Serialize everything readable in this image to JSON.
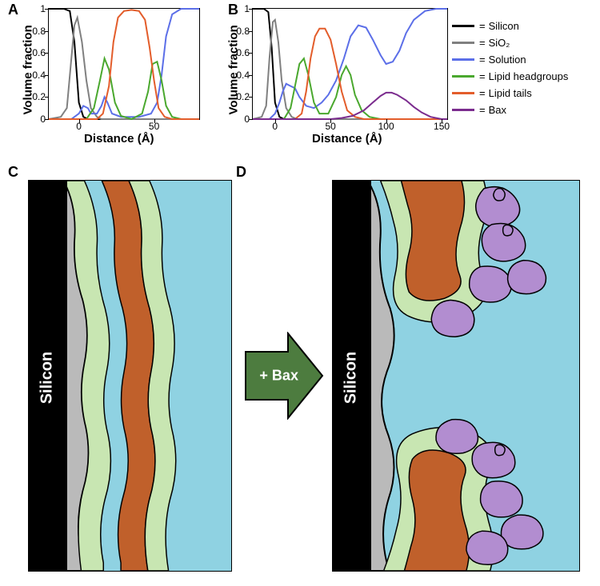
{
  "chartA": {
    "letter": "A",
    "xlim": [
      -20,
      80
    ],
    "ylim": [
      0,
      1
    ],
    "yticks": [
      0,
      0.2,
      0.4,
      0.6,
      0.8,
      1
    ],
    "xticks": [
      0,
      50
    ],
    "ylabel": "Volume fraction",
    "xlabel": "Distance (Å)",
    "series": [
      {
        "name": "silicon",
        "color": "#000000",
        "points": [
          [
            -20,
            1
          ],
          [
            -10,
            1
          ],
          [
            -6,
            0.98
          ],
          [
            -3,
            0.7
          ],
          [
            0,
            0.15
          ],
          [
            3,
            0.02
          ],
          [
            6,
            0
          ],
          [
            80,
            0
          ]
        ]
      },
      {
        "name": "sio2",
        "color": "#808080",
        "points": [
          [
            -20,
            0
          ],
          [
            -12,
            0.02
          ],
          [
            -8,
            0.1
          ],
          [
            -5,
            0.55
          ],
          [
            -3,
            0.85
          ],
          [
            -1,
            0.92
          ],
          [
            2,
            0.7
          ],
          [
            5,
            0.35
          ],
          [
            8,
            0.1
          ],
          [
            12,
            0.02
          ],
          [
            15,
            0
          ],
          [
            80,
            0
          ]
        ]
      },
      {
        "name": "solution",
        "color": "#5c6fe8",
        "points": [
          [
            -20,
            0
          ],
          [
            -5,
            0
          ],
          [
            0,
            0.05
          ],
          [
            3,
            0.12
          ],
          [
            6,
            0.1
          ],
          [
            8,
            0.05
          ],
          [
            12,
            0.05
          ],
          [
            15,
            0.12
          ],
          [
            17,
            0.2
          ],
          [
            19,
            0.15
          ],
          [
            22,
            0.05
          ],
          [
            28,
            0.02
          ],
          [
            40,
            0.02
          ],
          [
            48,
            0.05
          ],
          [
            52,
            0.15
          ],
          [
            55,
            0.4
          ],
          [
            58,
            0.75
          ],
          [
            62,
            0.95
          ],
          [
            68,
            1
          ],
          [
            80,
            1
          ]
        ]
      },
      {
        "name": "headgroups",
        "color": "#4aa82e",
        "points": [
          [
            -20,
            0
          ],
          [
            5,
            0
          ],
          [
            10,
            0.1
          ],
          [
            14,
            0.35
          ],
          [
            17,
            0.55
          ],
          [
            20,
            0.45
          ],
          [
            24,
            0.15
          ],
          [
            28,
            0.03
          ],
          [
            35,
            0
          ],
          [
            42,
            0.05
          ],
          [
            46,
            0.25
          ],
          [
            49,
            0.5
          ],
          [
            52,
            0.52
          ],
          [
            55,
            0.35
          ],
          [
            58,
            0.12
          ],
          [
            62,
            0.02
          ],
          [
            68,
            0
          ],
          [
            80,
            0
          ]
        ]
      },
      {
        "name": "tails",
        "color": "#e35d2b",
        "points": [
          [
            -20,
            0
          ],
          [
            12,
            0
          ],
          [
            16,
            0.05
          ],
          [
            20,
            0.3
          ],
          [
            23,
            0.7
          ],
          [
            26,
            0.92
          ],
          [
            30,
            0.98
          ],
          [
            35,
            0.99
          ],
          [
            40,
            0.98
          ],
          [
            44,
            0.9
          ],
          [
            47,
            0.65
          ],
          [
            50,
            0.35
          ],
          [
            53,
            0.1
          ],
          [
            57,
            0.02
          ],
          [
            62,
            0
          ],
          [
            80,
            0
          ]
        ]
      }
    ]
  },
  "chartB": {
    "letter": "B",
    "xlim": [
      -20,
      155
    ],
    "ylim": [
      0,
      1
    ],
    "yticks": [
      0,
      0.2,
      0.4,
      0.6,
      0.8,
      1
    ],
    "xticks": [
      0,
      50,
      100,
      150
    ],
    "ylabel": "Volume fraction",
    "xlabel": "Distance (Å)",
    "series": [
      {
        "name": "silicon",
        "color": "#000000",
        "points": [
          [
            -20,
            1
          ],
          [
            -10,
            1
          ],
          [
            -6,
            0.97
          ],
          [
            -3,
            0.65
          ],
          [
            0,
            0.15
          ],
          [
            4,
            0.02
          ],
          [
            8,
            0
          ],
          [
            155,
            0
          ]
        ]
      },
      {
        "name": "sio2",
        "color": "#808080",
        "points": [
          [
            -20,
            0
          ],
          [
            -12,
            0.02
          ],
          [
            -8,
            0.12
          ],
          [
            -5,
            0.55
          ],
          [
            -2,
            0.88
          ],
          [
            0,
            0.9
          ],
          [
            3,
            0.7
          ],
          [
            6,
            0.35
          ],
          [
            10,
            0.1
          ],
          [
            15,
            0.02
          ],
          [
            20,
            0
          ],
          [
            155,
            0
          ]
        ]
      },
      {
        "name": "solution",
        "color": "#5c6fe8",
        "points": [
          [
            -20,
            0
          ],
          [
            -5,
            0
          ],
          [
            0,
            0.05
          ],
          [
            4,
            0.15
          ],
          [
            7,
            0.25
          ],
          [
            10,
            0.32
          ],
          [
            14,
            0.3
          ],
          [
            18,
            0.28
          ],
          [
            22,
            0.2
          ],
          [
            28,
            0.12
          ],
          [
            35,
            0.1
          ],
          [
            42,
            0.15
          ],
          [
            48,
            0.22
          ],
          [
            55,
            0.35
          ],
          [
            62,
            0.55
          ],
          [
            68,
            0.75
          ],
          [
            75,
            0.85
          ],
          [
            82,
            0.83
          ],
          [
            88,
            0.72
          ],
          [
            95,
            0.58
          ],
          [
            100,
            0.5
          ],
          [
            106,
            0.52
          ],
          [
            112,
            0.62
          ],
          [
            118,
            0.78
          ],
          [
            125,
            0.9
          ],
          [
            135,
            0.98
          ],
          [
            145,
            1
          ],
          [
            155,
            1
          ]
        ]
      },
      {
        "name": "headgroups",
        "color": "#4aa82e",
        "points": [
          [
            -20,
            0
          ],
          [
            8,
            0
          ],
          [
            14,
            0.1
          ],
          [
            18,
            0.3
          ],
          [
            22,
            0.5
          ],
          [
            26,
            0.55
          ],
          [
            30,
            0.4
          ],
          [
            35,
            0.15
          ],
          [
            40,
            0.05
          ],
          [
            48,
            0.05
          ],
          [
            55,
            0.2
          ],
          [
            60,
            0.4
          ],
          [
            64,
            0.48
          ],
          [
            68,
            0.4
          ],
          [
            72,
            0.22
          ],
          [
            78,
            0.08
          ],
          [
            85,
            0.02
          ],
          [
            95,
            0
          ],
          [
            155,
            0
          ]
        ]
      },
      {
        "name": "tails",
        "color": "#e35d2b",
        "points": [
          [
            -20,
            0
          ],
          [
            18,
            0
          ],
          [
            24,
            0.05
          ],
          [
            28,
            0.25
          ],
          [
            32,
            0.55
          ],
          [
            36,
            0.75
          ],
          [
            40,
            0.82
          ],
          [
            45,
            0.82
          ],
          [
            50,
            0.72
          ],
          [
            55,
            0.5
          ],
          [
            60,
            0.25
          ],
          [
            65,
            0.08
          ],
          [
            72,
            0.02
          ],
          [
            80,
            0
          ],
          [
            155,
            0
          ]
        ]
      },
      {
        "name": "bax",
        "color": "#7b2c8e",
        "points": [
          [
            -20,
            0
          ],
          [
            50,
            0
          ],
          [
            60,
            0.01
          ],
          [
            70,
            0.03
          ],
          [
            80,
            0.08
          ],
          [
            88,
            0.15
          ],
          [
            95,
            0.21
          ],
          [
            100,
            0.24
          ],
          [
            105,
            0.24
          ],
          [
            110,
            0.22
          ],
          [
            118,
            0.17
          ],
          [
            125,
            0.11
          ],
          [
            132,
            0.06
          ],
          [
            140,
            0.02
          ],
          [
            150,
            0
          ],
          [
            155,
            0
          ]
        ]
      }
    ]
  },
  "legend": [
    {
      "color": "#000000",
      "label": "Silicon"
    },
    {
      "color": "#808080",
      "label": "SiO₂"
    },
    {
      "color": "#5c6fe8",
      "label": "Solution"
    },
    {
      "color": "#4aa82e",
      "label": "Lipid headgroups"
    },
    {
      "color": "#e35d2b",
      "label": "Lipid tails"
    },
    {
      "color": "#7b2c8e",
      "label": "Bax"
    }
  ],
  "panel_letters": {
    "C": "C",
    "D": "D"
  },
  "arrow_label": "+ Bax",
  "diagram_colors": {
    "solution": "#8fd2e2",
    "silicon": "#000000",
    "sio2": "#bababa",
    "head": "#c8e6b2",
    "tail": "#c0602b",
    "bax": "#b28dd0",
    "arrow_fill": "#4d7c3f",
    "arrow_stroke": "#000000"
  },
  "silicon_label": "Silicon"
}
